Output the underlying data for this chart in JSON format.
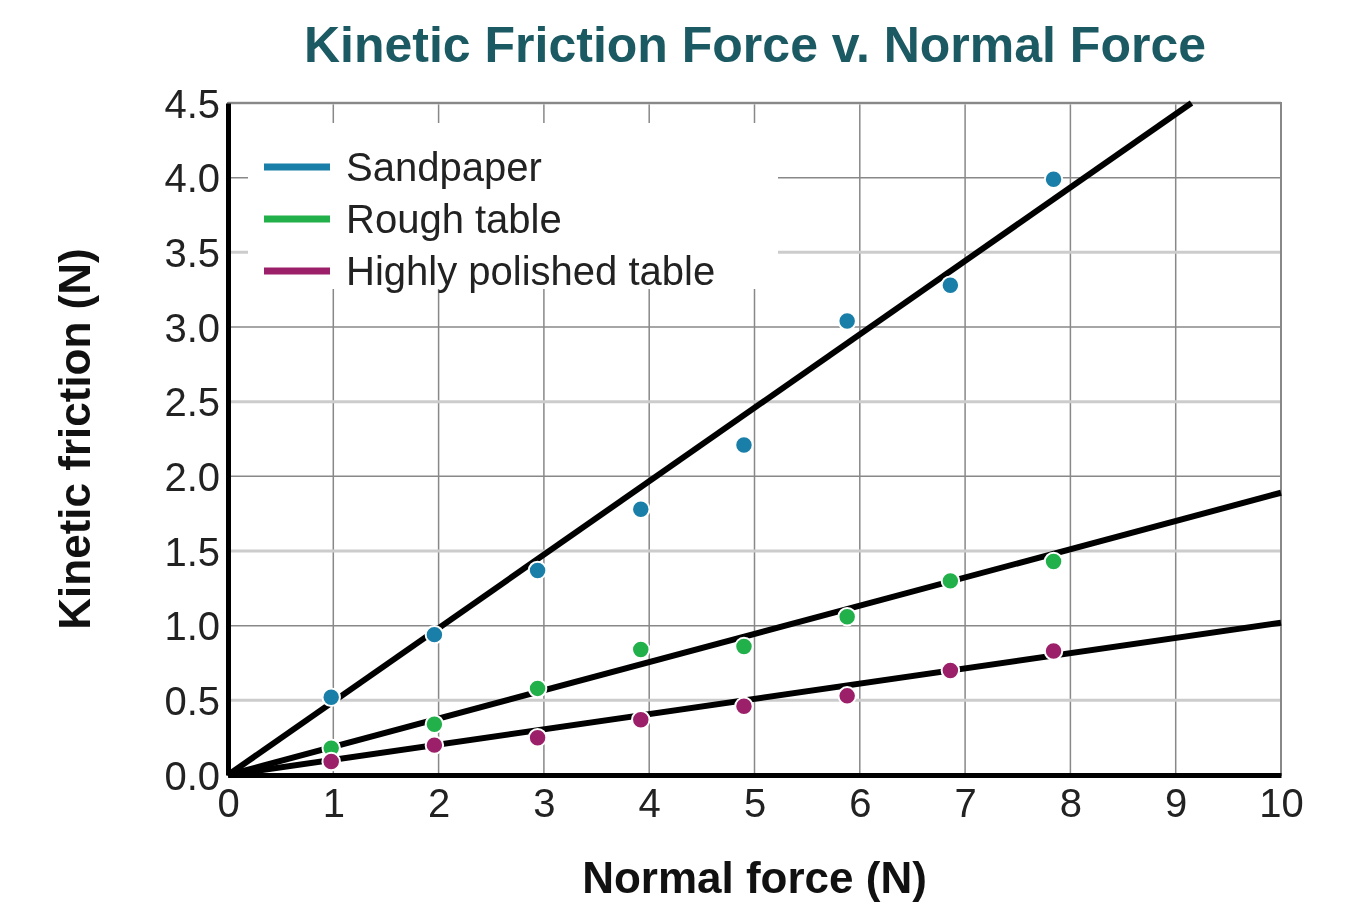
{
  "chart_data": {
    "type": "scatter",
    "title": "Kinetic Friction Force v. Normal Force",
    "xlabel": "Normal force (N)",
    "ylabel": "Kinetic friction (N)",
    "xlim": [
      0,
      10
    ],
    "xticks": [
      0,
      1,
      2,
      3,
      4,
      5,
      6,
      7,
      8,
      9,
      10
    ],
    "ylim": [
      0,
      4.5
    ],
    "yticks": [
      {
        "value": 0,
        "label": "0.0"
      },
      0.5,
      {
        "value": 1,
        "label": "1.0"
      },
      1.5,
      {
        "value": 2,
        "label": "2.0"
      },
      2.5,
      {
        "value": 3,
        "label": "3.0"
      },
      3.5,
      {
        "value": 4,
        "label": "4.0"
      },
      4.5
    ],
    "grid": true,
    "legend": "top left",
    "marker": "circle",
    "x": [
      0.98,
      1.96,
      2.94,
      3.92,
      4.9,
      5.88,
      6.86,
      7.84
    ],
    "series": [
      {
        "name": "Sandpaper",
        "color": "#1a7fa8",
        "values": [
          0.52,
          0.94,
          1.37,
          1.78,
          2.21,
          3.04,
          3.28,
          3.99
        ]
      },
      {
        "name": "Rough table",
        "color": "#22b04b",
        "values": [
          0.18,
          0.34,
          0.58,
          0.84,
          0.86,
          1.06,
          1.3,
          1.43
        ]
      },
      {
        "name": "Highly polished table",
        "color": "#9c1f6a",
        "values": [
          0.09,
          0.2,
          0.25,
          0.37,
          0.46,
          0.53,
          0.7,
          0.83
        ]
      },
      {
        "type": "line",
        "color": "#000000",
        "marker": "none",
        "x": [
          0,
          9.15
        ],
        "values": [
          0,
          4.5
        ]
      },
      {
        "type": "line",
        "color": "#000000",
        "marker": "none",
        "x": [
          0,
          10
        ],
        "values": [
          0,
          1.89
        ]
      },
      {
        "type": "line",
        "color": "#000000",
        "marker": "none",
        "x": [
          0,
          10
        ],
        "values": [
          0,
          1.02
        ]
      }
    ]
  }
}
